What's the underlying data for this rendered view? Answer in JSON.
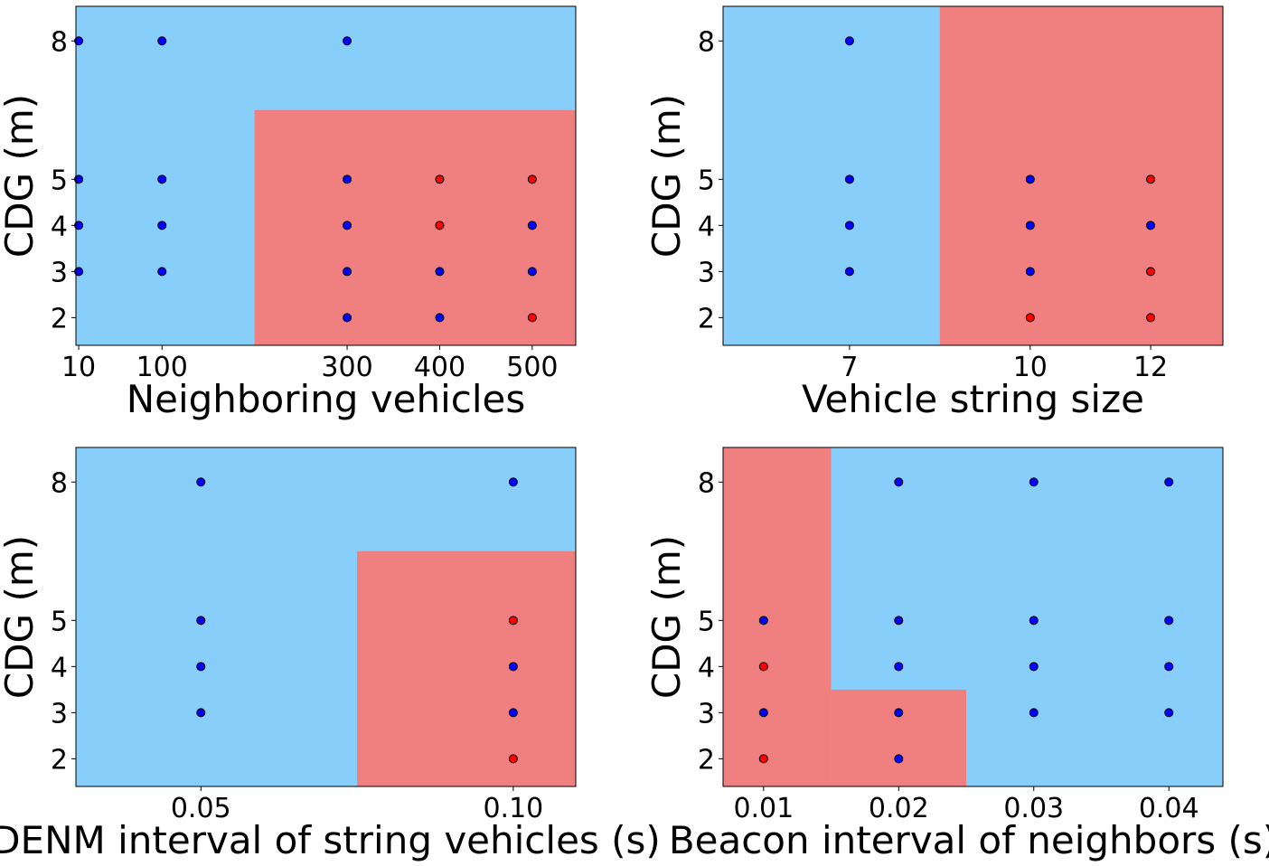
{
  "colors": {
    "region_blue": "#87cefa",
    "region_red": "#f08080",
    "point_blue": "#0000ff",
    "point_red": "#ff0000",
    "point_edge": "#000000"
  },
  "chart_data": [
    {
      "type": "scatter",
      "xlabel": "Neighboring vehicles",
      "ylabel": "CDG (m)",
      "xticks": [
        10,
        100,
        300,
        400,
        500
      ],
      "yticks": [
        2,
        3,
        4,
        5,
        8
      ],
      "xlim": [
        7,
        547
      ],
      "ylim": [
        1.4,
        8.75
      ],
      "grid": false,
      "regions": [
        {
          "class": "blue",
          "x": [
            7,
            547
          ],
          "y": [
            1.4,
            8.75
          ]
        },
        {
          "class": "red",
          "x": [
            200,
            547
          ],
          "y": [
            1.4,
            6.5
          ]
        }
      ],
      "points": [
        {
          "x": 10,
          "y": 8,
          "class": "blue"
        },
        {
          "x": 100,
          "y": 8,
          "class": "blue"
        },
        {
          "x": 300,
          "y": 8,
          "class": "blue"
        },
        {
          "x": 10,
          "y": 5,
          "class": "blue"
        },
        {
          "x": 100,
          "y": 5,
          "class": "blue"
        },
        {
          "x": 300,
          "y": 5,
          "class": "blue"
        },
        {
          "x": 400,
          "y": 5,
          "class": "red"
        },
        {
          "x": 500,
          "y": 5,
          "class": "red"
        },
        {
          "x": 10,
          "y": 4,
          "class": "blue"
        },
        {
          "x": 100,
          "y": 4,
          "class": "blue"
        },
        {
          "x": 300,
          "y": 4,
          "class": "blue"
        },
        {
          "x": 400,
          "y": 4,
          "class": "red"
        },
        {
          "x": 500,
          "y": 4,
          "class": "blue"
        },
        {
          "x": 10,
          "y": 3,
          "class": "blue"
        },
        {
          "x": 100,
          "y": 3,
          "class": "blue"
        },
        {
          "x": 300,
          "y": 3,
          "class": "blue"
        },
        {
          "x": 400,
          "y": 3,
          "class": "blue"
        },
        {
          "x": 500,
          "y": 3,
          "class": "blue"
        },
        {
          "x": 300,
          "y": 2,
          "class": "blue"
        },
        {
          "x": 400,
          "y": 2,
          "class": "blue"
        },
        {
          "x": 500,
          "y": 2,
          "class": "red"
        }
      ]
    },
    {
      "type": "scatter",
      "xlabel": "Vehicle string size",
      "ylabel": "CDG (m)",
      "xticks": [
        7,
        10,
        12
      ],
      "yticks": [
        2,
        3,
        4,
        5,
        8
      ],
      "xlim": [
        4.9,
        13.2
      ],
      "ylim": [
        1.4,
        8.75
      ],
      "grid": false,
      "regions": [
        {
          "class": "blue",
          "x": [
            4.9,
            13.2
          ],
          "y": [
            1.4,
            8.75
          ]
        },
        {
          "class": "red",
          "x": [
            8.5,
            13.2
          ],
          "y": [
            1.4,
            8.75
          ]
        }
      ],
      "points": [
        {
          "x": 7,
          "y": 8,
          "class": "blue"
        },
        {
          "x": 7,
          "y": 5,
          "class": "blue"
        },
        {
          "x": 10,
          "y": 5,
          "class": "blue"
        },
        {
          "x": 12,
          "y": 5,
          "class": "red"
        },
        {
          "x": 7,
          "y": 4,
          "class": "blue"
        },
        {
          "x": 10,
          "y": 4,
          "class": "blue"
        },
        {
          "x": 12,
          "y": 4,
          "class": "blue"
        },
        {
          "x": 7,
          "y": 3,
          "class": "blue"
        },
        {
          "x": 10,
          "y": 3,
          "class": "blue"
        },
        {
          "x": 12,
          "y": 3,
          "class": "red"
        },
        {
          "x": 10,
          "y": 2,
          "class": "red"
        },
        {
          "x": 12,
          "y": 2,
          "class": "red"
        }
      ]
    },
    {
      "type": "scatter",
      "xlabel": "DENM interval of string vehicles (s)",
      "ylabel": "CDG (m)",
      "xticks": [
        0.05,
        0.1
      ],
      "xtick_labels": [
        "0.05",
        "0.10"
      ],
      "yticks": [
        2,
        3,
        4,
        5,
        8
      ],
      "xlim": [
        0.03,
        0.11
      ],
      "ylim": [
        1.4,
        8.75
      ],
      "grid": false,
      "regions": [
        {
          "class": "blue",
          "x": [
            0.03,
            0.11
          ],
          "y": [
            1.4,
            8.75
          ]
        },
        {
          "class": "red",
          "x": [
            0.075,
            0.11
          ],
          "y": [
            1.4,
            6.5
          ]
        }
      ],
      "points": [
        {
          "x": 0.05,
          "y": 8,
          "class": "blue"
        },
        {
          "x": 0.1,
          "y": 8,
          "class": "blue"
        },
        {
          "x": 0.05,
          "y": 5,
          "class": "blue"
        },
        {
          "x": 0.1,
          "y": 5,
          "class": "red"
        },
        {
          "x": 0.05,
          "y": 4,
          "class": "blue"
        },
        {
          "x": 0.1,
          "y": 4,
          "class": "blue"
        },
        {
          "x": 0.05,
          "y": 3,
          "class": "blue"
        },
        {
          "x": 0.1,
          "y": 3,
          "class": "blue"
        },
        {
          "x": 0.1,
          "y": 2,
          "class": "red"
        }
      ]
    },
    {
      "type": "scatter",
      "xlabel": "Beacon interval of neighbors (s)",
      "ylabel": "CDG (m)",
      "xticks": [
        0.01,
        0.02,
        0.03,
        0.04
      ],
      "xtick_labels": [
        "0.01",
        "0.02",
        "0.03",
        "0.04"
      ],
      "yticks": [
        2,
        3,
        4,
        5,
        8
      ],
      "xlim": [
        0.007,
        0.044
      ],
      "ylim": [
        1.4,
        8.75
      ],
      "grid": false,
      "regions": [
        {
          "class": "blue",
          "x": [
            0.007,
            0.044
          ],
          "y": [
            1.4,
            8.75
          ]
        },
        {
          "class": "red",
          "x": [
            0.007,
            0.015
          ],
          "y": [
            1.4,
            8.75
          ]
        },
        {
          "class": "red",
          "x": [
            0.015,
            0.025
          ],
          "y": [
            1.4,
            3.5
          ]
        }
      ],
      "points": [
        {
          "x": 0.02,
          "y": 8,
          "class": "blue"
        },
        {
          "x": 0.03,
          "y": 8,
          "class": "blue"
        },
        {
          "x": 0.04,
          "y": 8,
          "class": "blue"
        },
        {
          "x": 0.01,
          "y": 5,
          "class": "blue"
        },
        {
          "x": 0.02,
          "y": 5,
          "class": "blue"
        },
        {
          "x": 0.03,
          "y": 5,
          "class": "blue"
        },
        {
          "x": 0.04,
          "y": 5,
          "class": "blue"
        },
        {
          "x": 0.01,
          "y": 4,
          "class": "red"
        },
        {
          "x": 0.02,
          "y": 4,
          "class": "blue"
        },
        {
          "x": 0.03,
          "y": 4,
          "class": "blue"
        },
        {
          "x": 0.04,
          "y": 4,
          "class": "blue"
        },
        {
          "x": 0.01,
          "y": 3,
          "class": "blue"
        },
        {
          "x": 0.02,
          "y": 3,
          "class": "blue"
        },
        {
          "x": 0.03,
          "y": 3,
          "class": "blue"
        },
        {
          "x": 0.04,
          "y": 3,
          "class": "blue"
        },
        {
          "x": 0.01,
          "y": 2,
          "class": "red"
        },
        {
          "x": 0.02,
          "y": 2,
          "class": "blue"
        }
      ]
    }
  ]
}
